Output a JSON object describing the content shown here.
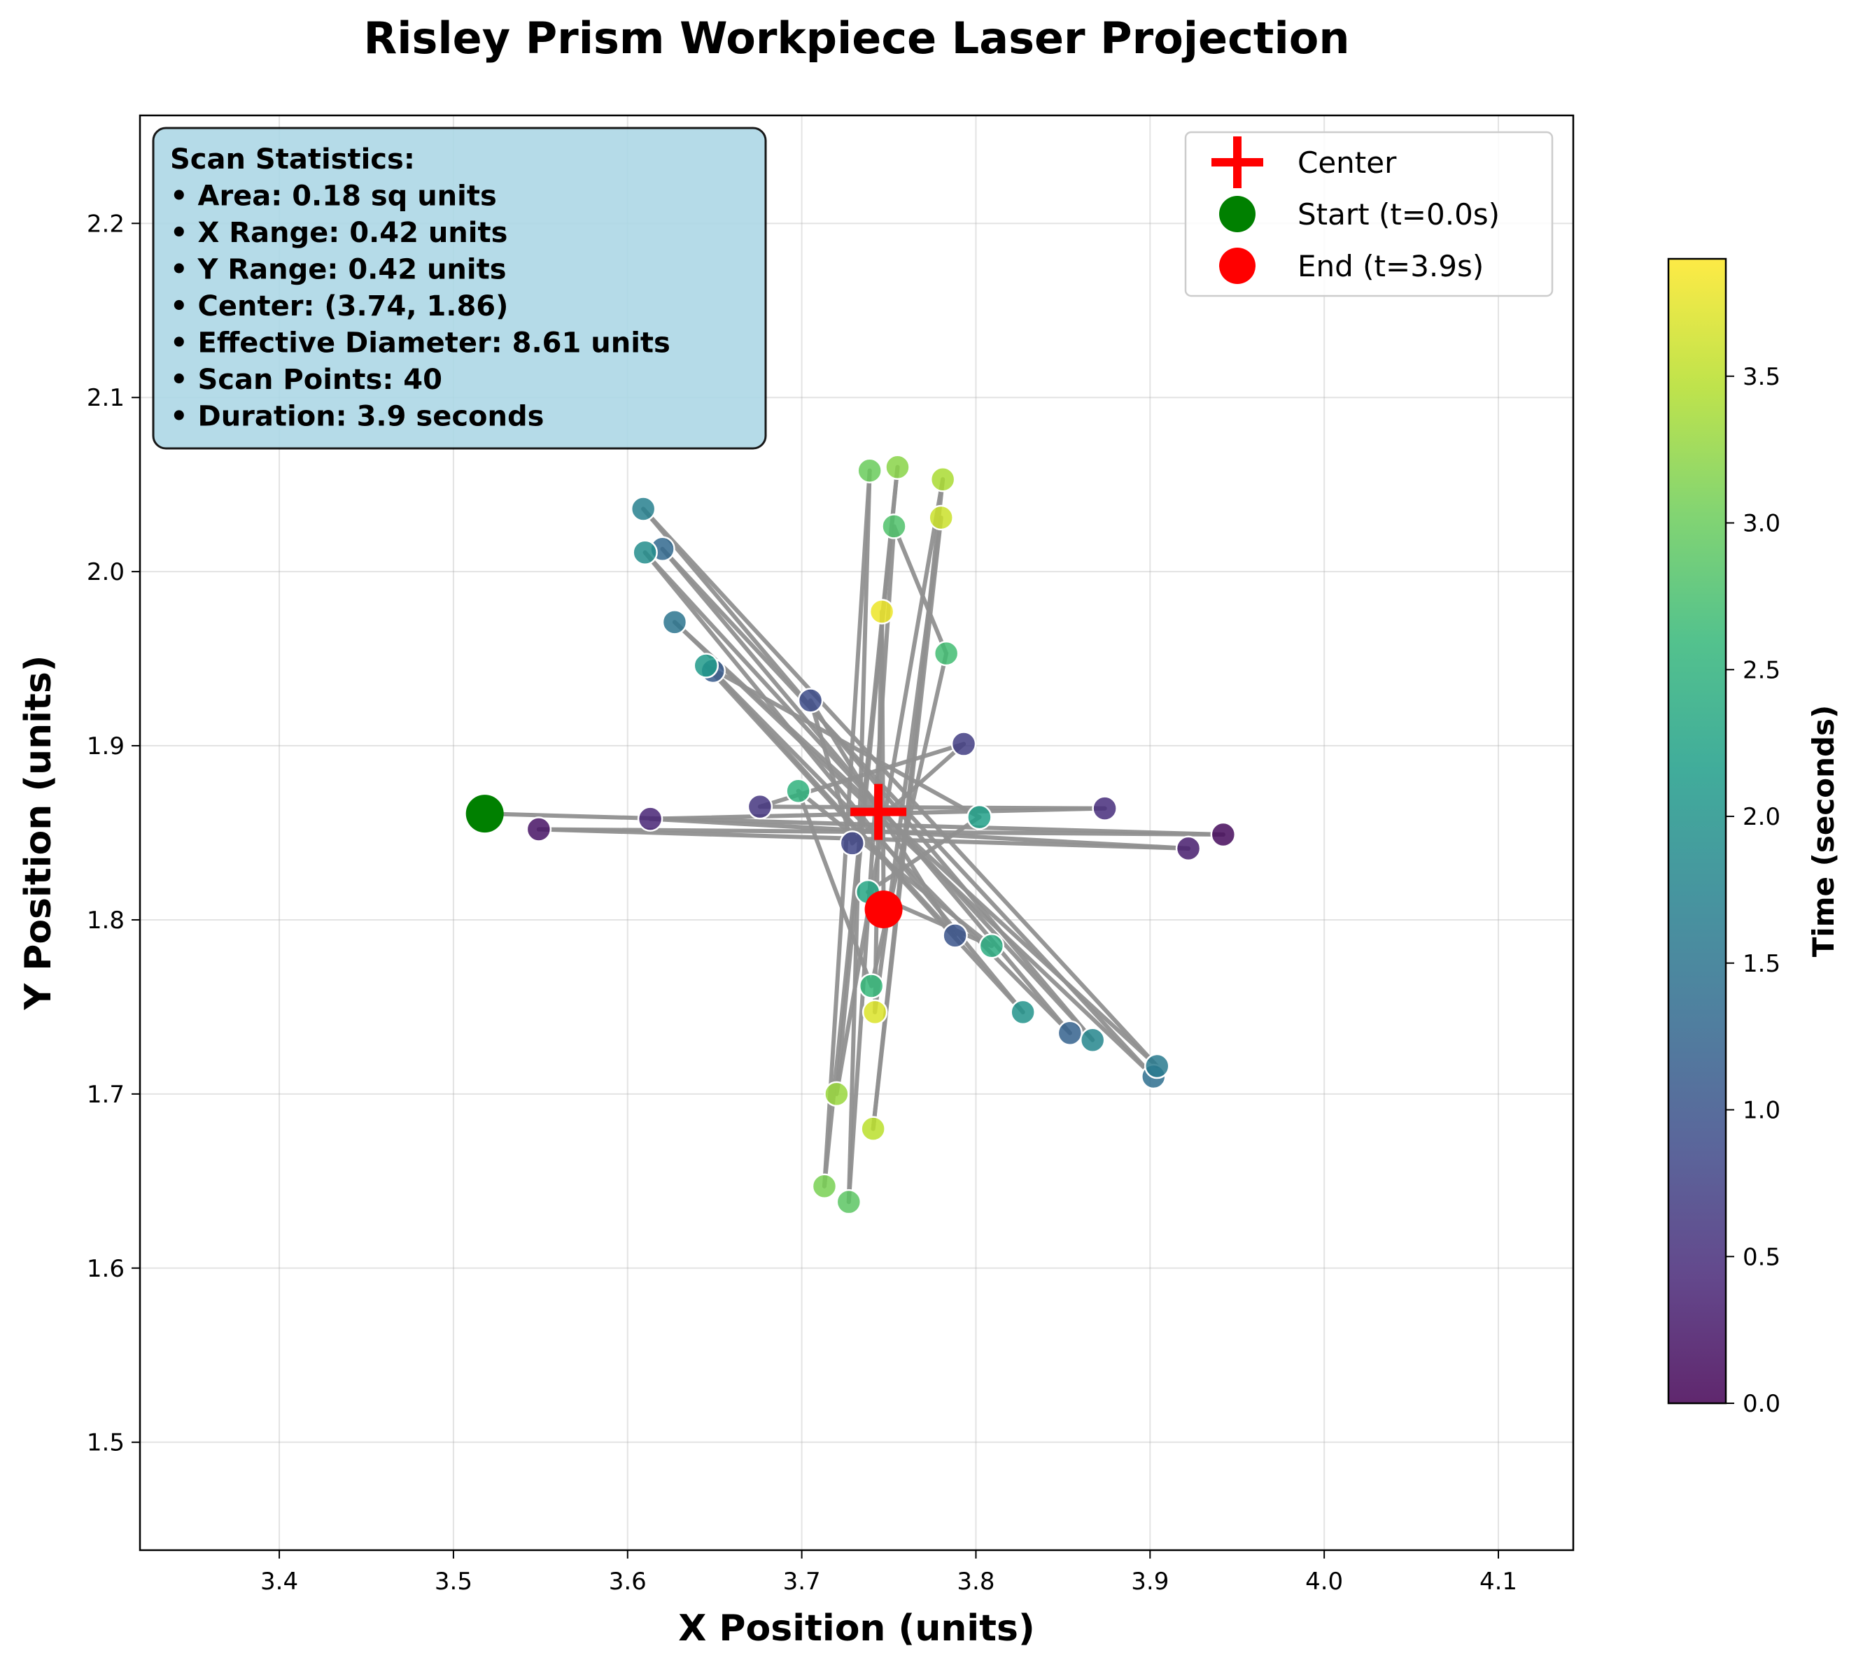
{
  "chart_data": {
    "type": "scatter",
    "title": "Risley Prism Workpiece Laser Projection",
    "xlabel": "X Position (units)",
    "ylabel": "Y Position (units)",
    "xlim": [
      3.32,
      4.143
    ],
    "ylim": [
      1.438,
      2.262
    ],
    "xticks": [
      3.4,
      3.5,
      3.6,
      3.7,
      3.8,
      3.9,
      4.0,
      4.1
    ],
    "yticks": [
      1.5,
      1.6,
      1.7,
      1.8,
      1.9,
      2.0,
      2.1,
      2.2
    ],
    "grid": true,
    "colormap": "viridis",
    "colorbar": {
      "label": "Time (seconds)",
      "range": [
        0.0,
        3.9
      ],
      "ticks": [
        0.0,
        0.5,
        1.0,
        1.5,
        2.0,
        2.5,
        3.0,
        3.5
      ]
    },
    "path_color": "#909090",
    "center": {
      "x": 3.744,
      "y": 1.862,
      "color": "#ff0000",
      "label": "Center"
    },
    "start": {
      "x": 3.518,
      "y": 1.861,
      "color": "#008000",
      "label": "Start (t=0.0s)"
    },
    "end": {
      "x": 3.747,
      "y": 1.806,
      "color": "#ff0000",
      "label": "End (t=3.9s)"
    },
    "legend_position": "top-right",
    "points": [
      {
        "t": 0.0,
        "x": 3.518,
        "y": 1.861
      },
      {
        "t": 0.1,
        "x": 3.942,
        "y": 1.849
      },
      {
        "t": 0.2,
        "x": 3.549,
        "y": 1.852
      },
      {
        "t": 0.3,
        "x": 3.922,
        "y": 1.841
      },
      {
        "t": 0.4,
        "x": 3.613,
        "y": 1.858
      },
      {
        "t": 0.5,
        "x": 3.874,
        "y": 1.864
      },
      {
        "t": 0.6,
        "x": 3.676,
        "y": 1.865
      },
      {
        "t": 0.7,
        "x": 3.793,
        "y": 1.901
      },
      {
        "t": 0.8,
        "x": 3.729,
        "y": 1.844
      },
      {
        "t": 0.9,
        "x": 3.705,
        "y": 1.926
      },
      {
        "t": 1.0,
        "x": 3.788,
        "y": 1.791
      },
      {
        "t": 1.1,
        "x": 3.649,
        "y": 1.943
      },
      {
        "t": 1.2,
        "x": 3.854,
        "y": 1.735
      },
      {
        "t": 1.3,
        "x": 3.62,
        "y": 2.013
      },
      {
        "t": 1.4,
        "x": 3.902,
        "y": 1.71
      },
      {
        "t": 1.5,
        "x": 3.627,
        "y": 1.971
      },
      {
        "t": 1.6,
        "x": 3.904,
        "y": 1.716
      },
      {
        "t": 1.7,
        "x": 3.609,
        "y": 2.036
      },
      {
        "t": 1.8,
        "x": 3.867,
        "y": 1.731
      },
      {
        "t": 1.9,
        "x": 3.61,
        "y": 2.011
      },
      {
        "t": 2.0,
        "x": 3.827,
        "y": 1.747
      },
      {
        "t": 2.1,
        "x": 3.645,
        "y": 1.946
      },
      {
        "t": 2.2,
        "x": 3.802,
        "y": 1.859
      },
      {
        "t": 2.3,
        "x": 3.738,
        "y": 1.816
      },
      {
        "t": 2.4,
        "x": 3.809,
        "y": 1.785
      },
      {
        "t": 2.5,
        "x": 3.698,
        "y": 1.874
      },
      {
        "t": 2.6,
        "x": 3.74,
        "y": 1.762
      },
      {
        "t": 2.7,
        "x": 3.783,
        "y": 1.953
      },
      {
        "t": 2.8,
        "x": 3.753,
        "y": 2.026
      },
      {
        "t": 2.9,
        "x": 3.727,
        "y": 1.638
      },
      {
        "t": 3.0,
        "x": 3.739,
        "y": 2.058
      },
      {
        "t": 3.1,
        "x": 3.713,
        "y": 1.647
      },
      {
        "t": 3.2,
        "x": 3.755,
        "y": 2.06
      },
      {
        "t": 3.3,
        "x": 3.72,
        "y": 1.7
      },
      {
        "t": 3.4,
        "x": 3.781,
        "y": 2.053
      },
      {
        "t": 3.5,
        "x": 3.741,
        "y": 1.68
      },
      {
        "t": 3.6,
        "x": 3.78,
        "y": 2.031
      },
      {
        "t": 3.7,
        "x": 3.742,
        "y": 1.747
      },
      {
        "t": 3.8,
        "x": 3.746,
        "y": 1.977
      },
      {
        "t": 3.9,
        "x": 3.747,
        "y": 1.806
      }
    ]
  },
  "stats_box": {
    "title": "Scan Statistics:",
    "lines": [
      "• Area: 0.18 sq units",
      "• X Range: 0.42 units",
      "• Y Range: 0.42 units",
      "• Center: (3.74, 1.86)",
      "• Effective Diameter: 8.61 units",
      "• Scan Points: 40",
      "• Duration: 3.9 seconds"
    ],
    "background": "#add8e6"
  },
  "legend": {
    "items": [
      {
        "label": "Center",
        "marker": "plus",
        "color": "#ff0000"
      },
      {
        "label": "Start (t=0.0s)",
        "marker": "circle",
        "color": "#008000"
      },
      {
        "label": "End (t=3.9s)",
        "marker": "circle",
        "color": "#ff0000"
      }
    ]
  }
}
